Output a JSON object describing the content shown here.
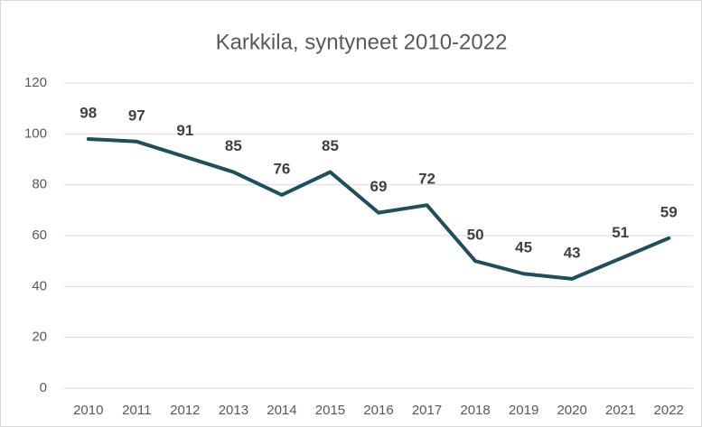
{
  "chart_data": {
    "type": "line",
    "title": "Karkkila, syntyneet 2010-2022",
    "categories": [
      "2010",
      "2011",
      "2012",
      "2013",
      "2014",
      "2015",
      "2016",
      "2017",
      "2018",
      "2019",
      "2020",
      "2021",
      "2022"
    ],
    "series": [
      {
        "color": "#1f4e5c",
        "values": [
          98,
          97,
          91,
          85,
          76,
          85,
          69,
          72,
          50,
          45,
          43,
          51,
          59
        ]
      }
    ],
    "ylim": [
      0,
      120
    ],
    "yticks": [
      0,
      20,
      40,
      60,
      80,
      100,
      120
    ],
    "grid": true
  }
}
